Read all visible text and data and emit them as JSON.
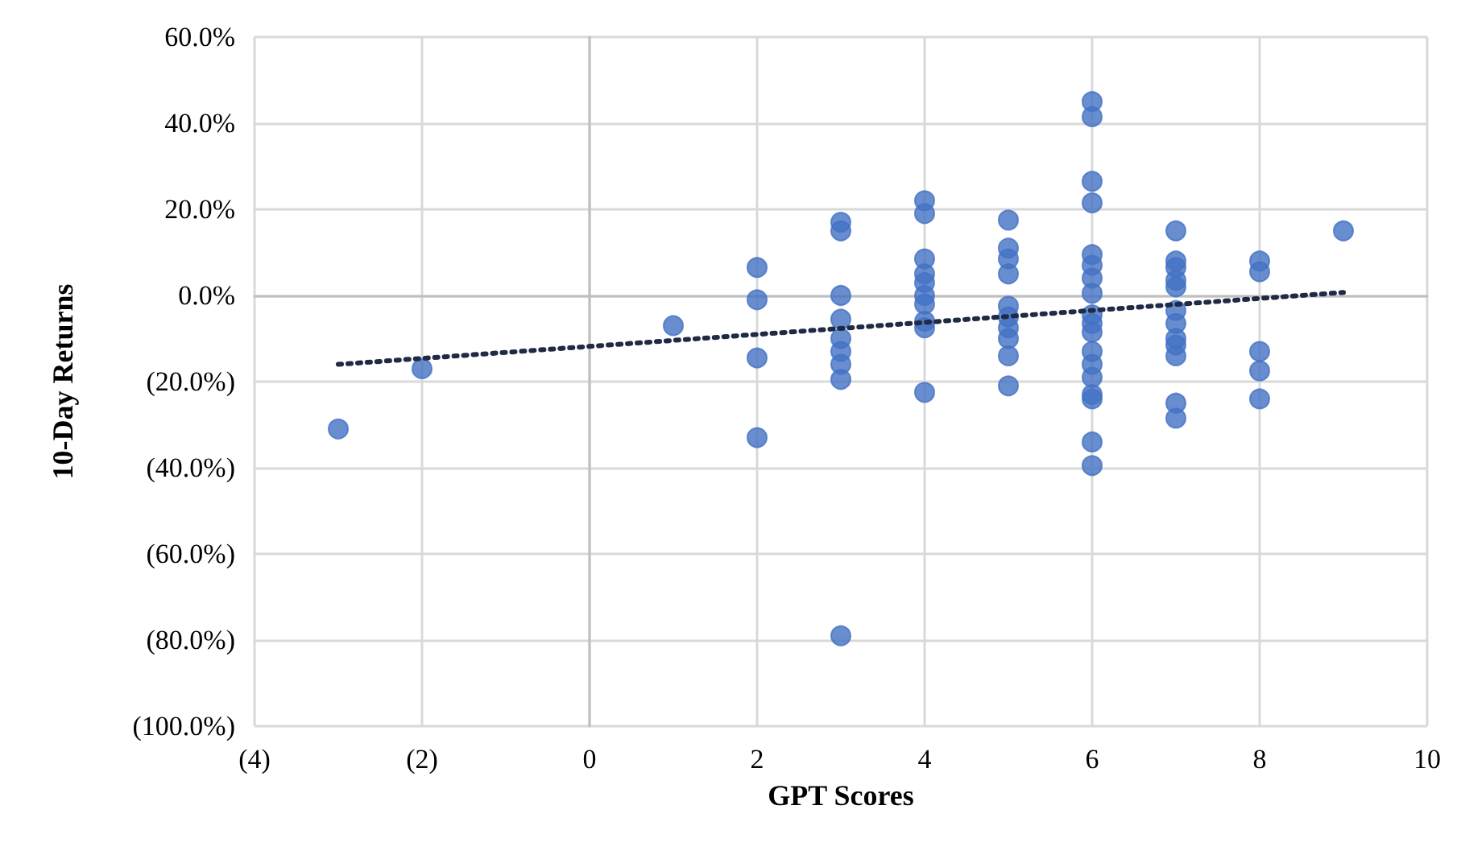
{
  "chart_data": {
    "type": "scatter",
    "xlabel": "GPT Scores",
    "ylabel": "10-Day Returns",
    "xlim": [
      -4,
      10
    ],
    "xticks": [
      {
        "value": -4,
        "label": "(4)"
      },
      {
        "value": -2,
        "label": "(2)"
      },
      0,
      2,
      4,
      6,
      8,
      10
    ],
    "ylim": [
      -100,
      60
    ],
    "yticks": [
      {
        "value": -100,
        "label": "(100.0%)"
      },
      {
        "value": -80,
        "label": "(80.0%)"
      },
      {
        "value": -60,
        "label": "(60.0%)"
      },
      {
        "value": -40,
        "label": "(40.0%)"
      },
      {
        "value": -20,
        "label": "(20.0%)"
      },
      {
        "value": 0,
        "label": "0.0%"
      },
      {
        "value": 20,
        "label": "20.0%"
      },
      {
        "value": 40,
        "label": "40.0%"
      },
      {
        "value": 60,
        "label": "60.0%"
      }
    ],
    "grid": true,
    "series": [
      {
        "color": "#4472c4",
        "marker": "circle",
        "x": [
          -3,
          -2,
          1,
          2,
          2,
          2,
          2,
          3,
          3,
          3,
          3,
          3,
          3,
          3,
          3,
          3,
          4,
          4,
          4,
          4,
          4,
          4,
          4,
          4,
          4,
          4,
          5,
          5,
          5,
          5,
          5,
          5,
          5,
          5,
          5,
          5,
          6,
          6,
          6,
          6,
          6,
          6,
          6,
          6,
          6,
          6,
          6,
          6,
          6,
          6,
          6,
          6,
          6,
          6,
          7,
          7,
          7,
          7,
          7,
          7,
          7,
          7,
          7,
          7,
          7,
          7,
          8,
          8,
          8,
          8,
          8,
          9
        ],
        "values": [
          -31,
          -17,
          -7,
          6.5,
          -1,
          -14.5,
          -33,
          17,
          15,
          0,
          -5.5,
          -10,
          -13,
          -16,
          -19.5,
          -79,
          22,
          19,
          8.5,
          5,
          3,
          0,
          -2,
          -6,
          -7.5,
          -22.5,
          17.5,
          11,
          8.5,
          5,
          -2.5,
          -5,
          -7.5,
          -10,
          -14,
          -21,
          45,
          41.5,
          26.5,
          21.5,
          9.5,
          7,
          4,
          0.5,
          -4.5,
          -6.5,
          -8.5,
          -13,
          -16,
          -19,
          -23,
          -24,
          -34,
          -39.5,
          15,
          8,
          6.5,
          3.5,
          2,
          -3.5,
          -6.5,
          -10,
          -11.5,
          -14,
          -25,
          -28.5,
          8,
          5.5,
          -13,
          -17.5,
          -24,
          15
        ]
      },
      {
        "type": "line",
        "color": "#1f2a44",
        "marker": "none",
        "line_style": "dotted",
        "x": [
          -3,
          9
        ],
        "values": [
          -16,
          0.7
        ]
      }
    ]
  }
}
